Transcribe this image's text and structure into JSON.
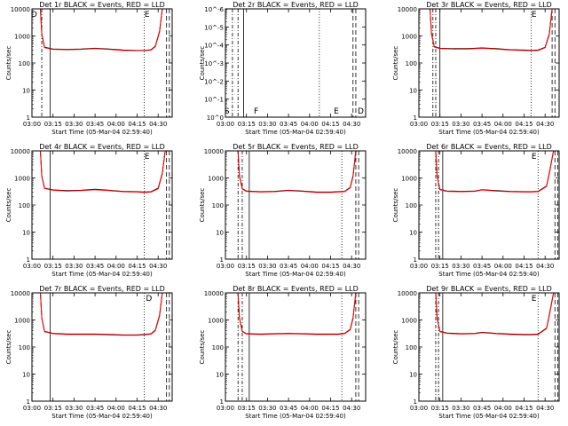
{
  "chart_data": [
    {
      "type": "line",
      "title": "Det 1r  BLACK = Events, RED = LLD",
      "xlabel": "Start Time (05-Mar-04 02:59:40)",
      "ylabel": "Counts/sec",
      "yscale": "log",
      "ylim": [
        1,
        10000
      ],
      "xlim": [
        "03:00",
        "04:40"
      ],
      "x_tick_labels": [
        "03:00",
        "03:15",
        "03:30",
        "03:45",
        "04:00",
        "04:15",
        "04:30"
      ],
      "y_tick_labels": [
        "1",
        "10",
        "100",
        "1000",
        "10000"
      ],
      "marker_labels": [
        "D",
        "E"
      ],
      "series": [
        {
          "name": "BLACK = Events",
          "color": "#000000",
          "x": [
            "03:06",
            "03:07",
            "03:09",
            "03:15",
            "03:25",
            "03:35",
            "03:45",
            "03:55",
            "04:05",
            "04:15",
            "04:20",
            "04:25",
            "04:28",
            "04:31",
            "04:33"
          ],
          "values": [
            10000,
            1200,
            380,
            330,
            320,
            330,
            350,
            330,
            300,
            290,
            290,
            310,
            420,
            1500,
            10000
          ]
        },
        {
          "name": "RED = LLD",
          "color": "#ff0000",
          "x": [
            "03:06",
            "03:07",
            "03:09",
            "03:15",
            "03:25",
            "03:35",
            "03:45",
            "03:55",
            "04:05",
            "04:15",
            "04:20",
            "04:25",
            "04:28",
            "04:31",
            "04:33"
          ],
          "values": [
            10000,
            1150,
            370,
            320,
            310,
            320,
            340,
            320,
            290,
            285,
            285,
            300,
            400,
            1400,
            10000
          ]
        }
      ]
    },
    {
      "type": "line",
      "title": "Det 2r  BLACK = Events, RED = LLD",
      "xlabel": "Start Time (05-Mar-04 02:59:40)",
      "ylabel": "Counts/sec",
      "yscale": "log",
      "ylim": [
        1,
        1e-06
      ],
      "xlim": [
        "03:00",
        "04:40"
      ],
      "x_tick_labels": [
        "03:00",
        "03:15",
        "03:30",
        "03:45",
        "04:00",
        "04:15",
        "04:30"
      ],
      "y_tick_labels": [
        "10^0",
        "10^-1",
        "10^-2",
        "10^-3",
        "10^-4",
        "10^-5",
        "10^-6"
      ],
      "marker_labels": [
        "S",
        "F",
        "E",
        "D"
      ],
      "series": []
    },
    {
      "type": "line",
      "title": "Det 3r  BLACK = Events, RED = LLD",
      "xlabel": "Start Time (05-Mar-04 02:59:40)",
      "ylabel": "Counts/sec",
      "yscale": "log",
      "ylim": [
        1,
        10000
      ],
      "xlim": [
        "03:00",
        "04:40"
      ],
      "x_tick_labels": [
        "03:00",
        "03:15",
        "03:30",
        "03:45",
        "04:00",
        "04:15",
        "04:30"
      ],
      "y_tick_labels": [
        "1",
        "10",
        "100",
        "1000",
        "10000"
      ],
      "marker_labels": [
        "E"
      ],
      "series": [
        {
          "name": "BLACK = Events",
          "color": "#000000",
          "x": [
            "03:08",
            "03:09",
            "03:11",
            "03:15",
            "03:25",
            "03:35",
            "03:45",
            "03:55",
            "04:05",
            "04:15",
            "04:20",
            "04:25",
            "04:30",
            "04:33",
            "04:35"
          ],
          "values": [
            10000,
            1200,
            400,
            350,
            340,
            340,
            360,
            340,
            310,
            300,
            295,
            300,
            380,
            1200,
            10000
          ]
        },
        {
          "name": "RED = LLD",
          "color": "#ff0000",
          "x": [
            "03:08",
            "03:09",
            "03:11",
            "03:15",
            "03:25",
            "03:35",
            "03:45",
            "03:55",
            "04:05",
            "04:15",
            "04:20",
            "04:25",
            "04:30",
            "04:33",
            "04:35"
          ],
          "values": [
            10000,
            1150,
            390,
            340,
            330,
            330,
            350,
            330,
            300,
            290,
            285,
            290,
            370,
            1100,
            10000
          ]
        }
      ]
    },
    {
      "type": "line",
      "title": "Det 4r  BLACK = Events, RED = LLD",
      "xlabel": "Start Time (05-Mar-04 02:59:40)",
      "ylabel": "Counts/sec",
      "yscale": "log",
      "ylim": [
        1,
        10000
      ],
      "xlim": [
        "03:00",
        "04:40"
      ],
      "x_tick_labels": [
        "03:00",
        "03:15",
        "03:30",
        "03:45",
        "04:00",
        "04:15",
        "04:30"
      ],
      "y_tick_labels": [
        "1",
        "10",
        "100",
        "1000",
        "10000"
      ],
      "marker_labels": [
        "E"
      ],
      "series": [
        {
          "name": "BLACK = Events",
          "color": "#000000",
          "x": [
            "03:06",
            "03:07",
            "03:09",
            "03:15",
            "03:25",
            "03:35",
            "03:45",
            "03:55",
            "04:05",
            "04:15",
            "04:20",
            "04:25",
            "04:30",
            "04:33",
            "04:35"
          ],
          "values": [
            10000,
            1200,
            420,
            360,
            340,
            350,
            380,
            350,
            320,
            310,
            300,
            310,
            420,
            1500,
            10000
          ]
        },
        {
          "name": "RED = LLD",
          "color": "#ff0000",
          "x": [
            "03:06",
            "03:07",
            "03:09",
            "03:15",
            "03:25",
            "03:35",
            "03:45",
            "03:55",
            "04:05",
            "04:15",
            "04:20",
            "04:25",
            "04:30",
            "04:33",
            "04:35"
          ],
          "values": [
            10000,
            1150,
            410,
            350,
            330,
            340,
            370,
            340,
            310,
            300,
            290,
            300,
            400,
            1400,
            10000
          ]
        }
      ]
    },
    {
      "type": "line",
      "title": "Det 5r  BLACK = Events, RED = LLD",
      "xlabel": "Start Time (05-Mar-04 02:59:40)",
      "ylabel": "Counts/sec",
      "yscale": "log",
      "ylim": [
        1,
        10000
      ],
      "xlim": [
        "03:00",
        "04:40"
      ],
      "x_tick_labels": [
        "03:00",
        "03:15",
        "03:30",
        "03:45",
        "04:00",
        "04:15",
        "04:30"
      ],
      "y_tick_labels": [
        "1",
        "10",
        "100",
        "1000",
        "10000"
      ],
      "marker_labels": [],
      "series": [
        {
          "name": "BLACK = Events",
          "color": "#000000",
          "x": [
            "03:09",
            "03:10",
            "03:12",
            "03:15",
            "03:25",
            "03:35",
            "03:45",
            "03:55",
            "04:05",
            "04:15",
            "04:20",
            "04:25",
            "04:29",
            "04:31",
            "04:33"
          ],
          "values": [
            10000,
            1200,
            400,
            330,
            310,
            320,
            350,
            330,
            300,
            300,
            310,
            320,
            450,
            1200,
            10000
          ]
        },
        {
          "name": "RED = LLD",
          "color": "#ff0000",
          "x": [
            "03:09",
            "03:10",
            "03:12",
            "03:15",
            "03:25",
            "03:35",
            "03:45",
            "03:55",
            "04:05",
            "04:15",
            "04:20",
            "04:25",
            "04:29",
            "04:31",
            "04:33"
          ],
          "values": [
            10000,
            1150,
            390,
            320,
            300,
            310,
            340,
            320,
            290,
            290,
            300,
            310,
            430,
            1100,
            10000
          ]
        }
      ]
    },
    {
      "type": "line",
      "title": "Det 6r  BLACK = Events, RED = LLD",
      "xlabel": "Start Time (05-Mar-04 02:59:40)",
      "ylabel": "Counts/sec",
      "yscale": "log",
      "ylim": [
        1,
        10000
      ],
      "xlim": [
        "03:00",
        "04:40"
      ],
      "x_tick_labels": [
        "03:00",
        "03:15",
        "03:30",
        "03:45",
        "04:00",
        "04:15",
        "04:30"
      ],
      "y_tick_labels": [
        "1",
        "10",
        "100",
        "1000",
        "10000"
      ],
      "marker_labels": [
        "E"
      ],
      "series": [
        {
          "name": "BLACK = Events",
          "color": "#000000",
          "x": [
            "03:12",
            "03:13",
            "03:15",
            "03:20",
            "03:30",
            "03:40",
            "03:45",
            "03:55",
            "04:05",
            "04:15",
            "04:20",
            "04:25",
            "04:31",
            "04:33",
            "04:36"
          ],
          "values": [
            10000,
            1200,
            380,
            330,
            320,
            330,
            370,
            340,
            320,
            310,
            310,
            320,
            500,
            1500,
            10000
          ]
        },
        {
          "name": "RED = LLD",
          "color": "#ff0000",
          "x": [
            "03:12",
            "03:13",
            "03:15",
            "03:20",
            "03:30",
            "03:40",
            "03:45",
            "03:55",
            "04:05",
            "04:15",
            "04:20",
            "04:25",
            "04:31",
            "04:33",
            "04:36"
          ],
          "values": [
            10000,
            1150,
            370,
            320,
            310,
            320,
            360,
            330,
            310,
            300,
            300,
            310,
            480,
            1400,
            10000
          ]
        }
      ]
    },
    {
      "type": "line",
      "title": "Det 7r  BLACK = Events, RED = LLD",
      "xlabel": "Start Time (05-Mar-04 02:59:40)",
      "ylabel": "Counts/sec",
      "yscale": "log",
      "ylim": [
        1,
        10000
      ],
      "xlim": [
        "03:00",
        "04:40"
      ],
      "x_tick_labels": [
        "03:00",
        "03:15",
        "03:30",
        "03:45",
        "04:00",
        "04:15",
        "04:30"
      ],
      "y_tick_labels": [
        "1",
        "10",
        "100",
        "1000",
        "10000"
      ],
      "marker_labels": [
        "D"
      ],
      "series": [
        {
          "name": "BLACK = Events",
          "color": "#000000",
          "x": [
            "03:06",
            "03:07",
            "03:09",
            "03:15",
            "03:25",
            "03:35",
            "03:45",
            "03:55",
            "04:05",
            "04:15",
            "04:20",
            "04:25",
            "04:28",
            "04:31",
            "04:33"
          ],
          "values": [
            10000,
            1200,
            380,
            320,
            300,
            300,
            300,
            290,
            280,
            280,
            290,
            310,
            420,
            1500,
            10000
          ]
        },
        {
          "name": "RED = LLD",
          "color": "#ff0000",
          "x": [
            "03:06",
            "03:07",
            "03:09",
            "03:15",
            "03:25",
            "03:35",
            "03:45",
            "03:55",
            "04:05",
            "04:15",
            "04:20",
            "04:25",
            "04:28",
            "04:31",
            "04:33"
          ],
          "values": [
            10000,
            1150,
            370,
            310,
            290,
            290,
            290,
            280,
            270,
            270,
            280,
            300,
            400,
            1400,
            10000
          ]
        }
      ]
    },
    {
      "type": "line",
      "title": "Det 8r  BLACK = Events, RED = LLD",
      "xlabel": "Start Time (05-Mar-04 02:59:40)",
      "ylabel": "Counts/sec",
      "yscale": "log",
      "ylim": [
        1,
        10000
      ],
      "xlim": [
        "03:00",
        "04:40"
      ],
      "x_tick_labels": [
        "03:00",
        "03:15",
        "03:30",
        "03:45",
        "04:00",
        "04:15",
        "04:30"
      ],
      "y_tick_labels": [
        "1",
        "10",
        "100",
        "1000",
        "10000"
      ],
      "marker_labels": [],
      "series": [
        {
          "name": "BLACK = Events",
          "color": "#000000",
          "x": [
            "03:09",
            "03:10",
            "03:12",
            "03:15",
            "03:25",
            "03:35",
            "03:45",
            "03:55",
            "04:05",
            "04:15",
            "04:20",
            "04:25",
            "04:29",
            "04:31",
            "04:33"
          ],
          "values": [
            10000,
            1200,
            380,
            310,
            300,
            310,
            320,
            310,
            300,
            300,
            300,
            320,
            450,
            1200,
            10000
          ]
        },
        {
          "name": "RED = LLD",
          "color": "#ff0000",
          "x": [
            "03:09",
            "03:10",
            "03:12",
            "03:15",
            "03:25",
            "03:35",
            "03:45",
            "03:55",
            "04:05",
            "04:15",
            "04:20",
            "04:25",
            "04:29",
            "04:31",
            "04:33"
          ],
          "values": [
            10000,
            1150,
            370,
            300,
            290,
            300,
            310,
            300,
            290,
            290,
            290,
            310,
            430,
            1100,
            10000
          ]
        }
      ]
    },
    {
      "type": "line",
      "title": "Det 9r  BLACK = Events, RED = LLD",
      "xlabel": "Start Time (05-Mar-04 02:59:40)",
      "ylabel": "Counts/sec",
      "yscale": "log",
      "ylim": [
        1,
        10000
      ],
      "xlim": [
        "03:00",
        "04:40"
      ],
      "x_tick_labels": [
        "03:00",
        "03:15",
        "03:30",
        "03:45",
        "04:00",
        "04:15",
        "04:30"
      ],
      "y_tick_labels": [
        "1",
        "10",
        "100",
        "1000",
        "10000"
      ],
      "marker_labels": [
        "E"
      ],
      "series": [
        {
          "name": "BLACK = Events",
          "color": "#000000",
          "x": [
            "03:12",
            "03:13",
            "03:15",
            "03:20",
            "03:30",
            "03:40",
            "03:45",
            "03:55",
            "04:05",
            "04:15",
            "04:20",
            "04:25",
            "04:31",
            "04:33",
            "04:36"
          ],
          "values": [
            10000,
            1200,
            380,
            330,
            310,
            320,
            350,
            320,
            300,
            290,
            290,
            300,
            500,
            1500,
            10000
          ]
        },
        {
          "name": "RED = LLD",
          "color": "#ff0000",
          "x": [
            "03:12",
            "03:13",
            "03:15",
            "03:20",
            "03:30",
            "03:40",
            "03:45",
            "03:55",
            "04:05",
            "04:15",
            "04:20",
            "04:25",
            "04:31",
            "04:33",
            "04:36"
          ],
          "values": [
            10000,
            1150,
            370,
            320,
            300,
            310,
            340,
            310,
            290,
            280,
            280,
            290,
            480,
            1400,
            10000
          ]
        }
      ]
    }
  ]
}
